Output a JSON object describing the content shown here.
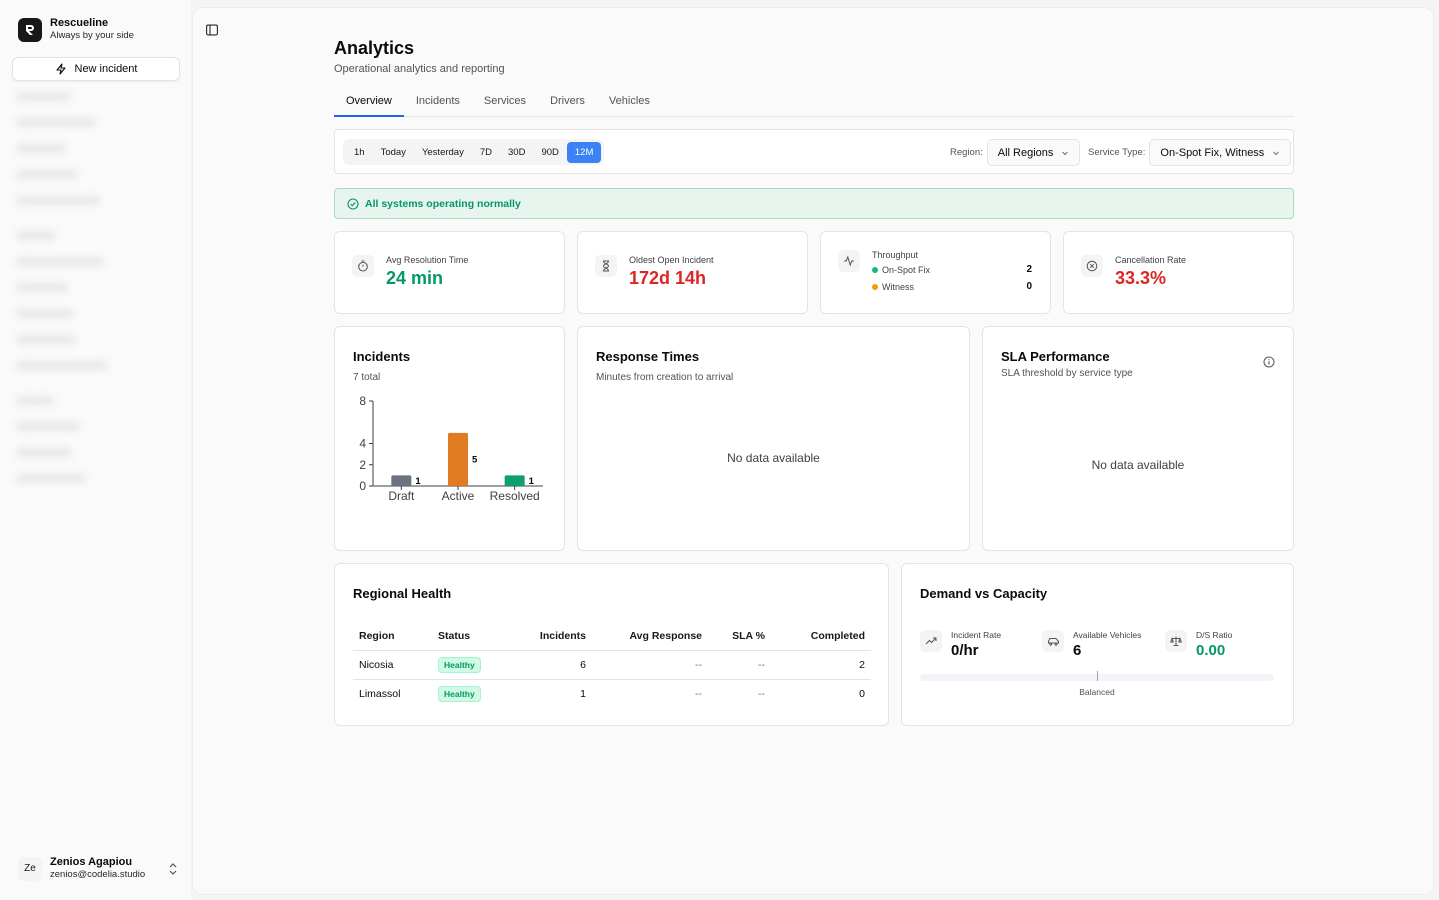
{
  "sidebar": {
    "brand_name": "Rescueline",
    "brand_tagline": "Always by your side",
    "new_incident_label": "New incident",
    "user": {
      "initials": "Ze",
      "name": "Zenios Agapiou",
      "email": "zenios@codelia.studio"
    }
  },
  "header": {
    "title": "Analytics",
    "subtitle": "Operational analytics and reporting"
  },
  "tabs": [
    {
      "label": "Overview",
      "active": true
    },
    {
      "label": "Incidents"
    },
    {
      "label": "Services"
    },
    {
      "label": "Drivers"
    },
    {
      "label": "Vehicles"
    }
  ],
  "filters": {
    "ranges": [
      "1h",
      "Today",
      "Yesterday",
      "7D",
      "30D",
      "90D",
      "12M"
    ],
    "active_range": "12M",
    "region_label": "Region:",
    "region_value": "All Regions",
    "service_label": "Service Type:",
    "service_value": "On-Spot Fix, Witness"
  },
  "banner": {
    "text": "All systems operating normally"
  },
  "kpis": {
    "avg_resolution": {
      "label": "Avg Resolution Time",
      "value": "24 min",
      "color": "#059669"
    },
    "oldest_open": {
      "label": "Oldest Open Incident",
      "value": "172d 14h",
      "color": "#dc2626"
    },
    "throughput": {
      "label": "Throughput",
      "rows": [
        {
          "name": "On-Spot Fix",
          "value": "2",
          "color": "#10b981"
        },
        {
          "name": "Witness",
          "value": "0",
          "color": "#f59e0b"
        }
      ]
    },
    "cancellation": {
      "label": "Cancellation Rate",
      "value": "33.3%",
      "color": "#dc2626"
    }
  },
  "incidents_panel": {
    "title": "Incidents",
    "subtitle": "7 total"
  },
  "chart_data": {
    "type": "bar",
    "categories": [
      "Draft",
      "Active",
      "Resolved"
    ],
    "values": [
      1,
      5,
      1
    ],
    "colors": [
      "#6b7280",
      "#e07b24",
      "#0e9f6e"
    ],
    "yticks": [
      0,
      2,
      4,
      8
    ],
    "ylim": [
      0,
      8
    ],
    "title": "",
    "xlabel": "",
    "ylabel": ""
  },
  "response_panel": {
    "title": "Response Times",
    "subtitle": "Minutes from creation to arrival",
    "empty": "No data available"
  },
  "sla_panel": {
    "title": "SLA Performance",
    "subtitle": "SLA threshold by service type",
    "empty": "No data available"
  },
  "regional": {
    "title": "Regional Health",
    "headers": [
      "Region",
      "Status",
      "Incidents",
      "Avg Response",
      "SLA %",
      "Completed"
    ],
    "rows": [
      {
        "region": "Nicosia",
        "status": "Healthy",
        "incidents": "6",
        "avg_response": "--",
        "sla": "--",
        "completed": "2"
      },
      {
        "region": "Limassol",
        "status": "Healthy",
        "incidents": "1",
        "avg_response": "--",
        "sla": "--",
        "completed": "0"
      }
    ]
  },
  "demand": {
    "title": "Demand vs Capacity",
    "incident_rate": {
      "label": "Incident Rate",
      "value": "0/hr"
    },
    "vehicles": {
      "label": "Available Vehicles",
      "value": "6"
    },
    "ratio": {
      "label": "D/S Ratio",
      "value": "0.00",
      "color": "#059669"
    },
    "balance_fraction": 0.5,
    "caption": "Balanced"
  }
}
